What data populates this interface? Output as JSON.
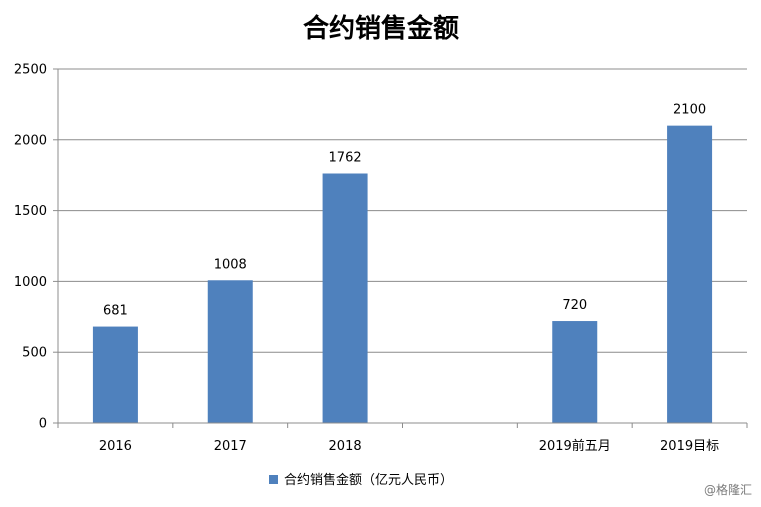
{
  "chart_data": {
    "type": "bar",
    "title": "合约销售金额",
    "categories": [
      "2016",
      "2017",
      "2018",
      "",
      "2019前五月",
      "2019目标"
    ],
    "series": [
      {
        "name": "合约销售金额（亿元人民币）",
        "values": [
          681,
          1008,
          1762,
          null,
          720,
          2100
        ]
      }
    ],
    "data_labels": [
      "681",
      "1008",
      "1762",
      "",
      "720",
      "2100"
    ],
    "yticks": [
      "0",
      "500",
      "1000",
      "1500",
      "2000",
      "2500"
    ],
    "ylim": [
      0,
      2500
    ],
    "xlabel": "",
    "ylabel": "",
    "grid": true,
    "legend_position": "bottom",
    "colors": {
      "bar": "#4f81bd",
      "grid": "#8c8c8c",
      "axis": "#8c8c8c"
    }
  },
  "watermark": "@格隆汇"
}
